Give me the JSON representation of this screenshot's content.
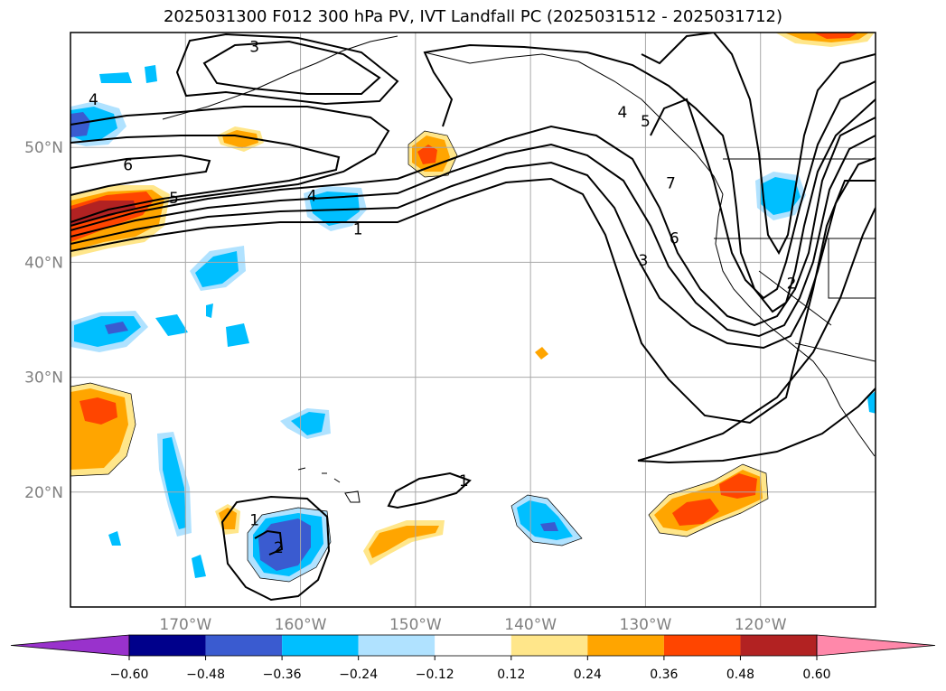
{
  "title": "2025031300 F012 300 hPa PV, IVT Landfall PC (2025031512 - 2025031712)",
  "chart_data": {
    "type": "heatmap",
    "title": "2025031300 F012 300 hPa PV, IVT Landfall PC (2025031512 - 2025031712)",
    "xlabel": "",
    "ylabel": "",
    "xlim": [
      -180,
      -110
    ],
    "ylim": [
      10,
      60
    ],
    "x_ticks": [
      -170,
      -160,
      -150,
      -140,
      -130,
      -120
    ],
    "x_tick_labels": [
      "170°W",
      "160°W",
      "150°W",
      "140°W",
      "130°W",
      "120°W"
    ],
    "y_ticks": [
      20,
      30,
      40,
      50
    ],
    "y_tick_labels": [
      "20°N",
      "30°N",
      "40°N",
      "50°N"
    ],
    "grid": true,
    "colorbar": {
      "levels": [
        -0.6,
        -0.48,
        -0.36,
        -0.24,
        -0.12,
        0.12,
        0.24,
        0.36,
        0.48,
        0.6
      ],
      "tick_labels": [
        "−0.60",
        "−0.48",
        "−0.36",
        "−0.24",
        "−0.12",
        "0.12",
        "0.24",
        "0.36",
        "0.48",
        "0.60"
      ],
      "colors": [
        "#9932cc",
        "#00008b",
        "#3a5bd0",
        "#00bfff",
        "#b0e2ff",
        "#ffffff",
        "#ffe68a",
        "#ffa500",
        "#ff4500",
        "#b22222",
        "#ff88aa"
      ],
      "extend": "both"
    },
    "contour_labels": [
      {
        "text": "3",
        "lon": -164,
        "lat": 58.8
      },
      {
        "text": "4",
        "lon": -178,
        "lat": 54.2
      },
      {
        "text": "6",
        "lon": -175,
        "lat": 48.5
      },
      {
        "text": "5",
        "lon": -171,
        "lat": 45.6
      },
      {
        "text": "4",
        "lon": -159,
        "lat": 45.8
      },
      {
        "text": "1",
        "lon": -155,
        "lat": 42.9
      },
      {
        "text": "4",
        "lon": -132,
        "lat": 53.1
      },
      {
        "text": "5",
        "lon": -130,
        "lat": 52.3
      },
      {
        "text": "7",
        "lon": -127.8,
        "lat": 46.9
      },
      {
        "text": "6",
        "lon": -127.5,
        "lat": 42.1
      },
      {
        "text": "3",
        "lon": -130.2,
        "lat": 40.2
      },
      {
        "text": "2",
        "lon": -117.3,
        "lat": 38.2
      },
      {
        "text": "1",
        "lon": -164,
        "lat": 17.6
      },
      {
        "text": "2",
        "lon": -161.9,
        "lat": 15.2
      },
      {
        "text": "1",
        "lon": -145.8,
        "lat": 21.0
      }
    ]
  }
}
